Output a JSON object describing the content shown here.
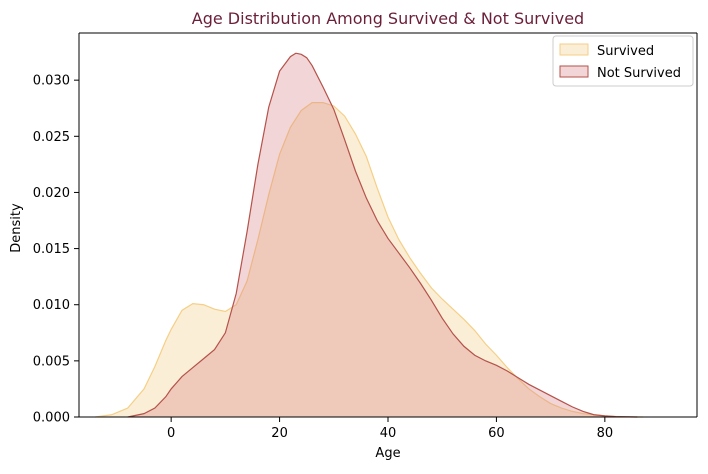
{
  "chart_data": {
    "type": "area",
    "title": "Age Distribution Among Survived & Not Survived",
    "xlabel": "Age",
    "ylabel": "Density",
    "xlim": [
      -17,
      97
    ],
    "ylim": [
      0,
      0.0342
    ],
    "xticks": [
      0,
      20,
      40,
      60,
      80
    ],
    "xtick_labels": [
      "0",
      "20",
      "40",
      "60",
      "80"
    ],
    "yticks": [
      0,
      0.005,
      0.01,
      0.015,
      0.02,
      0.025,
      0.03
    ],
    "ytick_labels": [
      "0.000",
      "0.005",
      "0.010",
      "0.015",
      "0.020",
      "0.025",
      "0.030"
    ],
    "grid": false,
    "legend_position": "top-right",
    "colors": {
      "title": "#6b1f3a",
      "axis": "#000000",
      "survived_line": "#f5cf86",
      "survived_fill": "#fbeed6",
      "not_survived_line": "#b5524a",
      "not_survived_fill": "#d9888a"
    },
    "series": [
      {
        "name": "Survived",
        "x": [
          -14,
          -11,
          -8,
          -5,
          -3,
          -1,
          0,
          2,
          4,
          6,
          8,
          10,
          12,
          14,
          16,
          18,
          20,
          22,
          24,
          26,
          28,
          30,
          32,
          34,
          36,
          38,
          40,
          42,
          44,
          46,
          48,
          50,
          52,
          54,
          56,
          58,
          60,
          62,
          64,
          66,
          68,
          70,
          72,
          74,
          76,
          78,
          80,
          82,
          84,
          87
        ],
        "y": [
          0,
          0.0002,
          0.0008,
          0.0025,
          0.0045,
          0.0068,
          0.0078,
          0.0095,
          0.0101,
          0.01,
          0.0096,
          0.0094,
          0.01,
          0.0121,
          0.0158,
          0.0198,
          0.0234,
          0.0258,
          0.0273,
          0.028,
          0.028,
          0.0277,
          0.0268,
          0.0252,
          0.0232,
          0.0204,
          0.0178,
          0.0158,
          0.0142,
          0.0128,
          0.0115,
          0.0105,
          0.0096,
          0.0087,
          0.0077,
          0.0065,
          0.0055,
          0.0044,
          0.0034,
          0.0025,
          0.0018,
          0.0012,
          0.0008,
          0.0005,
          0.0003,
          0.0002,
          0.0001,
          5e-05,
          2e-05,
          0
        ]
      },
      {
        "name": "Not Survived",
        "x": [
          -8,
          -5,
          -3,
          -1,
          0,
          2,
          4,
          6,
          8,
          10,
          12,
          14,
          16,
          18,
          20,
          22,
          23,
          24,
          25,
          26,
          28,
          30,
          32,
          34,
          36,
          38,
          40,
          42,
          44,
          46,
          48,
          50,
          52,
          54,
          56,
          58,
          60,
          62,
          64,
          66,
          68,
          70,
          72,
          74,
          76,
          78,
          80,
          82,
          86
        ],
        "y": [
          0,
          0.0003,
          0.0008,
          0.0018,
          0.0025,
          0.0036,
          0.0044,
          0.0052,
          0.006,
          0.0075,
          0.011,
          0.0165,
          0.0225,
          0.0276,
          0.0308,
          0.0321,
          0.0324,
          0.0323,
          0.032,
          0.0313,
          0.0294,
          0.0274,
          0.0247,
          0.0219,
          0.0195,
          0.0175,
          0.0159,
          0.0146,
          0.0133,
          0.0119,
          0.0104,
          0.0088,
          0.0074,
          0.0063,
          0.0055,
          0.005,
          0.0046,
          0.0041,
          0.0035,
          0.0029,
          0.0024,
          0.0019,
          0.0014,
          0.0009,
          0.0005,
          0.0002,
          0.0001,
          3e-05,
          0
        ]
      }
    ]
  }
}
